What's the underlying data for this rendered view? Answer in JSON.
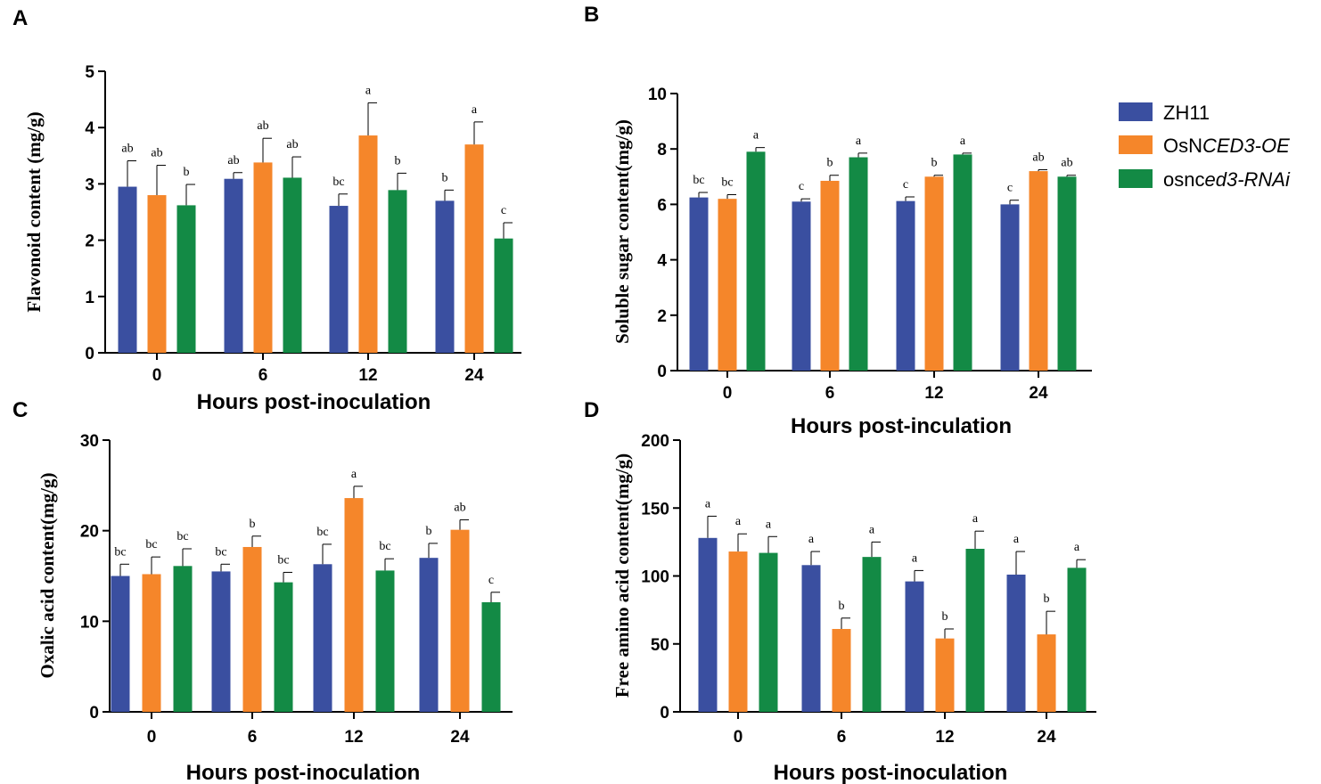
{
  "colors": {
    "ZH11": "#3a4fa0",
    "OsNCED3-OE": "#f5862a",
    "osnced3-RNAi": "#138a45"
  },
  "legend": [
    {
      "name": "ZH11",
      "prefix": "ZH11",
      "italic": ""
    },
    {
      "name": "OsNCED3-OE",
      "prefix": "OsN",
      "italic": "CED3-OE"
    },
    {
      "name": "osnced3-RNAi",
      "prefix": "osnc",
      "italic": "ed3-RNAi"
    }
  ],
  "chart_data": [
    {
      "panel": "A",
      "type": "bar",
      "categories": [
        "0",
        "6",
        "12",
        "24"
      ],
      "xlabel": "Hours post-inoculation",
      "ylabel": "Flavonoid content (mg/g)",
      "ylim": [
        0,
        5
      ],
      "yticks": [
        "0",
        "1",
        "2",
        "3",
        "4",
        "5"
      ],
      "series": [
        {
          "name": "ZH11",
          "values": [
            2.95,
            3.09,
            2.61,
            2.7
          ],
          "errors": [
            0.46,
            0.11,
            0.21,
            0.19
          ],
          "letters": [
            "ab",
            "ab",
            "bc",
            "b"
          ]
        },
        {
          "name": "OsNCED3-OE",
          "values": [
            2.8,
            3.38,
            3.86,
            3.7
          ],
          "errors": [
            0.53,
            0.43,
            0.58,
            0.4
          ],
          "letters": [
            "ab",
            "ab",
            "a",
            "a"
          ]
        },
        {
          "name": "osnced3-RNAi",
          "values": [
            2.62,
            3.11,
            2.89,
            2.03
          ],
          "errors": [
            0.37,
            0.37,
            0.3,
            0.28
          ],
          "letters": [
            "b",
            "ab",
            "b",
            "c"
          ]
        }
      ]
    },
    {
      "panel": "B",
      "type": "bar",
      "categories": [
        "0",
        "6",
        "12",
        "24"
      ],
      "xlabel": "Hours post-inculation",
      "ylabel": "Soluble sugar content(mg/g)",
      "ylim": [
        0,
        10
      ],
      "yticks": [
        "0",
        "2",
        "4",
        "6",
        "8",
        "10"
      ],
      "series": [
        {
          "name": "ZH11",
          "values": [
            6.25,
            6.1,
            6.12,
            6.0
          ],
          "errors": [
            0.18,
            0.1,
            0.15,
            0.15
          ],
          "letters": [
            "bc",
            "c",
            "c",
            "c"
          ]
        },
        {
          "name": "OsNCED3-OE",
          "values": [
            6.2,
            6.85,
            7.0,
            7.2
          ],
          "errors": [
            0.15,
            0.2,
            0.05,
            0.05
          ],
          "letters": [
            "bc",
            "b",
            "b",
            "ab"
          ]
        },
        {
          "name": "osnced3-RNAi",
          "values": [
            7.9,
            7.7,
            7.8,
            7.0
          ],
          "errors": [
            0.15,
            0.15,
            0.05,
            0.05
          ],
          "letters": [
            "a",
            "a",
            "a",
            "ab"
          ]
        }
      ]
    },
    {
      "panel": "C",
      "type": "bar",
      "categories": [
        "0",
        "6",
        "12",
        "24"
      ],
      "xlabel": "Hours post-inoculation",
      "ylabel": "Oxalic acid content(mg/g)",
      "ylim": [
        0,
        30
      ],
      "yticks": [
        "0",
        "10",
        "20",
        "30"
      ],
      "series": [
        {
          "name": "ZH11",
          "values": [
            15.0,
            15.5,
            16.3,
            17.0
          ],
          "errors": [
            1.3,
            0.8,
            2.2,
            1.6
          ],
          "letters": [
            "bc",
            "bc",
            "bc",
            "b"
          ]
        },
        {
          "name": "OsNCED3-OE",
          "values": [
            15.2,
            18.2,
            23.6,
            20.1
          ],
          "errors": [
            1.9,
            1.2,
            1.3,
            1.1
          ],
          "letters": [
            "bc",
            "b",
            "a",
            "ab"
          ]
        },
        {
          "name": "osnced3-RNAi",
          "values": [
            16.1,
            14.3,
            15.6,
            12.1
          ],
          "errors": [
            1.9,
            1.1,
            1.3,
            1.1
          ],
          "letters": [
            "bc",
            "bc",
            "bc",
            "c"
          ]
        }
      ]
    },
    {
      "panel": "D",
      "type": "bar",
      "categories": [
        "0",
        "6",
        "12",
        "24"
      ],
      "xlabel": "Hours post-inoculation",
      "ylabel": "Free amino acid content(mg/g)",
      "ylim": [
        0,
        200
      ],
      "yticks": [
        "0",
        "50",
        "100",
        "150",
        "200"
      ],
      "series": [
        {
          "name": "ZH11",
          "values": [
            128,
            108,
            96,
            101
          ],
          "errors": [
            16,
            10,
            8,
            17
          ],
          "letters": [
            "a",
            "a",
            "a",
            "a"
          ]
        },
        {
          "name": "OsNCED3-OE",
          "values": [
            118,
            61,
            54,
            57
          ],
          "errors": [
            13,
            8,
            7,
            17
          ],
          "letters": [
            "a",
            "b",
            "b",
            "b"
          ]
        },
        {
          "name": "osnced3-RNAi",
          "values": [
            117,
            114,
            120,
            106
          ],
          "errors": [
            12,
            11,
            13,
            6
          ],
          "letters": [
            "a",
            "a",
            "a",
            "a"
          ]
        }
      ]
    }
  ]
}
